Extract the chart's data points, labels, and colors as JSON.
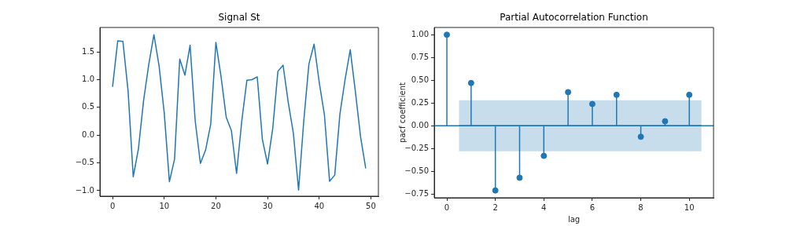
{
  "chart_data": [
    {
      "type": "line",
      "title": "Signal St",
      "x": [
        0,
        1,
        2,
        3,
        4,
        5,
        6,
        7,
        8,
        9,
        10,
        11,
        12,
        13,
        14,
        15,
        16,
        17,
        18,
        19,
        20,
        21,
        22,
        23,
        24,
        25,
        26,
        27,
        28,
        29,
        30,
        31,
        32,
        33,
        34,
        35,
        36,
        37,
        38,
        39,
        40,
        41,
        42,
        43,
        44,
        45,
        46,
        47,
        48,
        49
      ],
      "values": [
        0.87,
        1.7,
        1.69,
        0.8,
        -0.75,
        -0.25,
        0.62,
        1.27,
        1.81,
        1.25,
        0.4,
        -0.84,
        -0.43,
        1.37,
        1.08,
        1.62,
        0.25,
        -0.51,
        -0.27,
        0.2,
        1.67,
        1.05,
        0.32,
        0.08,
        -0.69,
        0.25,
        0.99,
        1.0,
        1.05,
        -0.08,
        -0.52,
        0.12,
        1.15,
        1.26,
        0.59,
        0.03,
        -0.99,
        0.25,
        1.28,
        1.64,
        0.95,
        0.37,
        -0.83,
        -0.72,
        0.38,
        1.0,
        1.54,
        0.78,
        -0.03,
        -0.6
      ],
      "color": "#1f77b4",
      "marker": "none",
      "xlim": [
        -2.45,
        51.45
      ],
      "ylim": [
        -1.1,
        1.94
      ],
      "xticks": [
        0,
        10,
        20,
        30,
        40,
        50
      ],
      "yticks": [
        {
          "value": -1,
          "label": "−1.0"
        },
        {
          "value": -0.5,
          "label": "−0.5"
        },
        {
          "value": 0,
          "label": "0.0"
        },
        {
          "value": 0.5,
          "label": "0.5"
        },
        {
          "value": 1,
          "label": "1.0"
        },
        {
          "value": 1.5,
          "label": "1.5"
        }
      ]
    },
    {
      "type": "lollipop",
      "title": "Partial Autocorrelation Function",
      "xlabel": "lag",
      "ylabel": "pacf coefficient",
      "series": [
        {
          "marker": "circle",
          "x": [
            0,
            1,
            2,
            3,
            4,
            5,
            6,
            7,
            8,
            9,
            10
          ],
          "values": [
            1.0,
            0.47,
            -0.71,
            -0.57,
            -0.33,
            0.37,
            0.24,
            0.34,
            -0.12,
            0.05,
            0.34
          ],
          "color": "#1f77b4"
        },
        {
          "type": "line",
          "x": [
            0.5,
            10.5
          ],
          "values": [
            0,
            0
          ],
          "lower": [
            -0.28,
            -0.28
          ],
          "upper": [
            0.28,
            0.28
          ],
          "color": "#1f77b4",
          "marker": "none"
        }
      ],
      "ref_lines": [
        {
          "axis": "y",
          "value": 0,
          "color": "#1f77b4"
        }
      ],
      "xlim": [
        -0.52,
        11.0
      ],
      "ylim": [
        -0.79,
        1.08
      ],
      "xticks": [
        0,
        2,
        4,
        6,
        8,
        10
      ],
      "yticks": [
        {
          "value": -0.75,
          "label": "−0.75"
        },
        {
          "value": -0.5,
          "label": "−0.50"
        },
        {
          "value": -0.25,
          "label": "−0.25"
        },
        {
          "value": 0,
          "label": "0.00"
        },
        {
          "value": 0.25,
          "label": "0.25"
        },
        {
          "value": 0.5,
          "label": "0.50"
        },
        {
          "value": 0.75,
          "label": "0.75"
        },
        {
          "value": 1,
          "label": "1.00"
        }
      ]
    }
  ]
}
